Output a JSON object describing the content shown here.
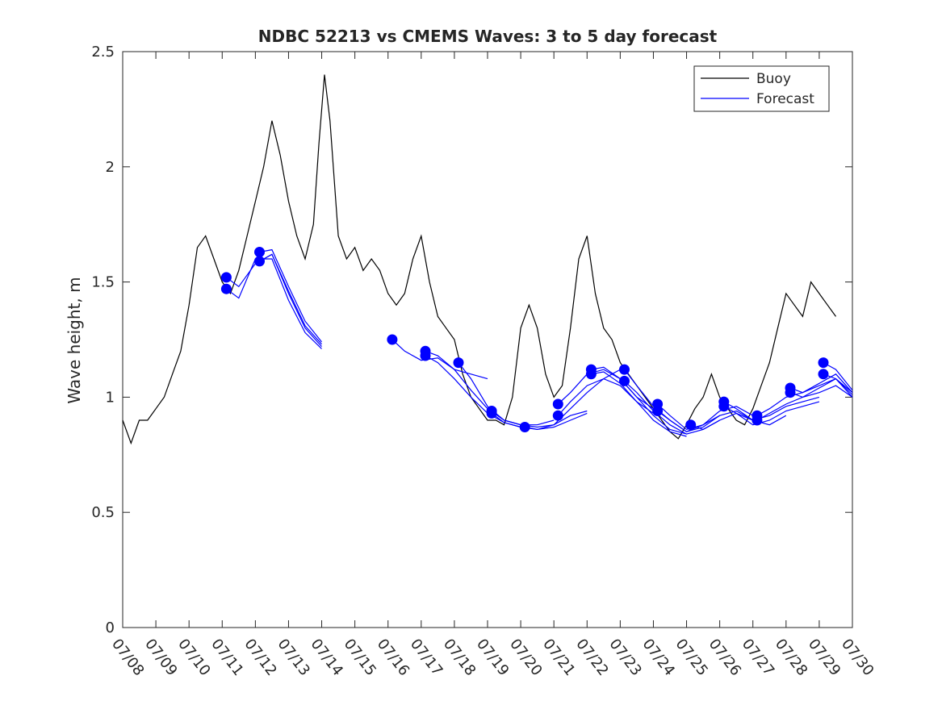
{
  "chart_data": {
    "type": "line",
    "title": "NDBC 52213 vs CMEMS Waves: 3 to 5 day forecast",
    "xlabel": "",
    "ylabel": "Wave height, m",
    "xlim": [
      "07/08",
      "07/30"
    ],
    "ylim": [
      0,
      2.5
    ],
    "grid": false,
    "legend_position": "top-right",
    "x_ticks": [
      "07/08",
      "07/09",
      "07/10",
      "07/11",
      "07/12",
      "07/13",
      "07/14",
      "07/15",
      "07/16",
      "07/17",
      "07/18",
      "07/19",
      "07/20",
      "07/21",
      "07/22",
      "07/23",
      "07/24",
      "07/25",
      "07/26",
      "07/27",
      "07/28",
      "07/29",
      "07/30"
    ],
    "y_ticks": [
      "0",
      "0.5",
      "1",
      "1.5",
      "2",
      "2.5"
    ],
    "colors": {
      "buoy": "#000000",
      "forecast": "#0000ff"
    },
    "series": [
      {
        "name": "Buoy",
        "style": "line",
        "x": [
          "07/08 00:00",
          "07/08 06:00",
          "07/08 12:00",
          "07/08 18:00",
          "07/09 00:00",
          "07/09 06:00",
          "07/09 12:00",
          "07/09 18:00",
          "07/10 00:00",
          "07/10 06:00",
          "07/10 12:00",
          "07/10 18:00",
          "07/11 00:00",
          "07/11 06:00",
          "07/11 12:00",
          "07/11 18:00",
          "07/12 00:00",
          "07/12 06:00",
          "07/12 12:00",
          "07/12 18:00",
          "07/13 00:00",
          "07/13 06:00",
          "07/13 12:00",
          "07/13 18:00",
          "07/13 22:00",
          "07/14 02:00",
          "07/14 06:00",
          "07/14 12:00",
          "07/14 18:00",
          "07/15 00:00",
          "07/15 06:00",
          "07/15 12:00",
          "07/15 18:00",
          "07/16 00:00",
          "07/16 06:00",
          "07/16 12:00",
          "07/16 18:00",
          "07/17 00:00",
          "07/17 06:00",
          "07/17 12:00",
          "07/17 18:00",
          "07/18 00:00",
          "07/18 06:00",
          "07/18 12:00",
          "07/18 18:00",
          "07/19 00:00",
          "07/19 06:00",
          "07/19 12:00",
          "07/19 18:00",
          "07/20 00:00",
          "07/20 06:00",
          "07/20 12:00",
          "07/20 18:00",
          "07/21 00:00",
          "07/21 06:00",
          "07/21 12:00",
          "07/21 18:00",
          "07/22 00:00",
          "07/22 06:00",
          "07/22 12:00",
          "07/22 18:00",
          "07/23 00:00",
          "07/23 06:00",
          "07/23 12:00",
          "07/23 18:00",
          "07/24 00:00",
          "07/24 06:00",
          "07/24 12:00",
          "07/24 18:00",
          "07/25 00:00",
          "07/25 06:00",
          "07/25 12:00",
          "07/25 18:00",
          "07/26 00:00",
          "07/26 06:00",
          "07/26 12:00",
          "07/26 18:00",
          "07/27 00:00",
          "07/27 06:00",
          "07/27 12:00",
          "07/27 18:00",
          "07/28 00:00",
          "07/28 06:00",
          "07/28 12:00",
          "07/28 18:00",
          "07/29 00:00",
          "07/29 06:00",
          "07/29 12:00"
        ],
        "y": [
          0.9,
          0.8,
          0.9,
          0.9,
          0.95,
          1.0,
          1.1,
          1.2,
          1.4,
          1.65,
          1.7,
          1.6,
          1.5,
          1.45,
          1.55,
          1.7,
          1.85,
          2.0,
          2.2,
          2.05,
          1.85,
          1.7,
          1.6,
          1.75,
          2.1,
          2.4,
          2.2,
          1.7,
          1.6,
          1.65,
          1.55,
          1.6,
          1.55,
          1.45,
          1.4,
          1.45,
          1.6,
          1.7,
          1.5,
          1.35,
          1.3,
          1.25,
          1.1,
          1.0,
          0.95,
          0.9,
          0.9,
          0.88,
          1.0,
          1.3,
          1.4,
          1.3,
          1.1,
          1.0,
          1.05,
          1.3,
          1.6,
          1.7,
          1.45,
          1.3,
          1.25,
          1.15,
          1.1,
          1.05,
          1.0,
          0.95,
          0.9,
          0.85,
          0.82,
          0.88,
          0.95,
          1.0,
          1.1,
          1.0,
          0.95,
          0.9,
          0.88,
          0.95,
          1.05,
          1.15,
          1.3,
          1.45,
          1.4,
          1.35,
          1.5,
          1.45,
          1.4,
          1.35
        ]
      },
      {
        "name": "Forecast",
        "style": "line-with-start-markers",
        "runs": [
          {
            "x": [
              "07/11 03:00",
              "07/11 12:00",
              "07/12 00:00",
              "07/12 12:00",
              "07/13 00:00",
              "07/13 12:00",
              "07/14 00:00"
            ],
            "y": [
              1.52,
              1.48,
              1.58,
              1.62,
              1.45,
              1.3,
              1.22
            ]
          },
          {
            "x": [
              "07/11 03:00",
              "07/11 12:00",
              "07/12 00:00",
              "07/12 12:00",
              "07/13 00:00",
              "07/13 12:00",
              "07/14 00:00"
            ],
            "y": [
              1.47,
              1.43,
              1.6,
              1.6,
              1.42,
              1.28,
              1.21
            ]
          },
          {
            "x": [
              "07/12 03:00",
              "07/12 12:00",
              "07/13 00:00",
              "07/13 12:00",
              "07/14 00:00"
            ],
            "y": [
              1.63,
              1.64,
              1.48,
              1.33,
              1.24
            ]
          },
          {
            "x": [
              "07/12 03:00",
              "07/12 12:00",
              "07/13 00:00",
              "07/13 12:00",
              "07/14 00:00"
            ],
            "y": [
              1.59,
              1.62,
              1.46,
              1.31,
              1.23
            ]
          },
          {
            "x": [
              "07/16 03:00",
              "07/16 12:00",
              "07/17 00:00",
              "07/17 12:00",
              "07/18 00:00",
              "07/18 12:00",
              "07/19 00:00"
            ],
            "y": [
              1.25,
              1.2,
              1.16,
              1.17,
              1.12,
              1.1,
              1.08
            ]
          },
          {
            "x": [
              "07/17 03:00",
              "07/17 12:00",
              "07/18 00:00",
              "07/18 12:00",
              "07/19 00:00",
              "07/19 12:00",
              "07/20 00:00"
            ],
            "y": [
              1.2,
              1.18,
              1.12,
              1.03,
              0.95,
              0.9,
              0.88
            ]
          },
          {
            "x": [
              "07/17 03:00",
              "07/17 12:00",
              "07/18 00:00",
              "07/18 12:00",
              "07/19 00:00",
              "07/19 12:00",
              "07/20 00:00"
            ],
            "y": [
              1.18,
              1.15,
              1.08,
              1.0,
              0.93,
              0.89,
              0.87
            ]
          },
          {
            "x": [
              "07/18 03:00",
              "07/18 12:00",
              "07/19 00:00",
              "07/19 12:00",
              "07/20 00:00",
              "07/20 12:00",
              "07/21 00:00"
            ],
            "y": [
              1.15,
              1.08,
              0.96,
              0.9,
              0.88,
              0.88,
              0.9
            ]
          },
          {
            "x": [
              "07/19 03:00",
              "07/19 12:00",
              "07/20 00:00",
              "07/20 12:00",
              "07/21 00:00",
              "07/21 12:00",
              "07/22 00:00"
            ],
            "y": [
              0.94,
              0.9,
              0.88,
              0.87,
              0.88,
              0.92,
              0.94
            ]
          },
          {
            "x": [
              "07/19 03:00",
              "07/19 12:00",
              "07/20 00:00",
              "07/20 12:00",
              "07/21 00:00",
              "07/21 12:00",
              "07/22 00:00"
            ],
            "y": [
              0.93,
              0.89,
              0.87,
              0.86,
              0.87,
              0.9,
              0.93
            ]
          },
          {
            "x": [
              "07/20 03:00",
              "07/20 12:00",
              "07/21 00:00",
              "07/21 12:00",
              "07/22 00:00",
              "07/22 12:00",
              "07/23 00:00"
            ],
            "y": [
              0.87,
              0.86,
              0.88,
              0.95,
              1.02,
              1.08,
              1.12
            ]
          },
          {
            "x": [
              "07/21 03:00",
              "07/21 12:00",
              "07/22 00:00",
              "07/22 12:00",
              "07/23 00:00",
              "07/23 12:00",
              "07/24 00:00"
            ],
            "y": [
              0.97,
              1.02,
              1.1,
              1.12,
              1.08,
              1.0,
              0.95
            ]
          },
          {
            "x": [
              "07/21 03:00",
              "07/21 12:00",
              "07/22 00:00",
              "07/22 12:00",
              "07/23 00:00",
              "07/23 12:00",
              "07/24 00:00"
            ],
            "y": [
              0.92,
              0.98,
              1.05,
              1.08,
              1.05,
              0.98,
              0.93
            ]
          },
          {
            "x": [
              "07/22 03:00",
              "07/22 12:00",
              "07/23 00:00",
              "07/23 12:00",
              "07/24 00:00",
              "07/24 12:00",
              "07/25 00:00"
            ],
            "y": [
              1.12,
              1.13,
              1.08,
              1.0,
              0.92,
              0.86,
              0.84
            ]
          },
          {
            "x": [
              "07/22 03:00",
              "07/22 12:00",
              "07/23 00:00",
              "07/23 12:00",
              "07/24 00:00",
              "07/24 12:00",
              "07/25 00:00"
            ],
            "y": [
              1.1,
              1.11,
              1.06,
              0.98,
              0.9,
              0.85,
              0.83
            ]
          },
          {
            "x": [
              "07/23 03:00",
              "07/23 12:00",
              "07/24 00:00",
              "07/24 12:00",
              "07/25 00:00",
              "07/25 12:00",
              "07/26 00:00"
            ],
            "y": [
              1.12,
              1.05,
              0.96,
              0.9,
              0.85,
              0.88,
              0.92
            ]
          },
          {
            "x": [
              "07/23 03:00",
              "07/23 12:00",
              "07/24 00:00",
              "07/24 12:00",
              "07/25 00:00",
              "07/25 12:00",
              "07/26 00:00"
            ],
            "y": [
              1.07,
              1.02,
              0.94,
              0.88,
              0.84,
              0.86,
              0.9
            ]
          },
          {
            "x": [
              "07/24 03:00",
              "07/24 12:00",
              "07/25 00:00",
              "07/25 12:00",
              "07/26 00:00",
              "07/26 12:00",
              "07/27 00:00"
            ],
            "y": [
              0.97,
              0.92,
              0.86,
              0.88,
              0.94,
              0.96,
              0.92
            ]
          },
          {
            "x": [
              "07/24 03:00",
              "07/24 12:00",
              "07/25 00:00",
              "07/25 12:00",
              "07/26 00:00",
              "07/26 12:00",
              "07/27 00:00"
            ],
            "y": [
              0.94,
              0.9,
              0.85,
              0.87,
              0.92,
              0.94,
              0.9
            ]
          },
          {
            "x": [
              "07/25 03:00",
              "07/25 12:00",
              "07/26 00:00",
              "07/26 12:00",
              "07/27 00:00",
              "07/27 12:00",
              "07/28 00:00"
            ],
            "y": [
              0.88,
              0.86,
              0.9,
              0.93,
              0.9,
              0.88,
              0.92
            ]
          },
          {
            "x": [
              "07/26 03:00",
              "07/26 12:00",
              "07/27 00:00",
              "07/27 12:00",
              "07/28 00:00",
              "07/28 12:00",
              "07/29 00:00"
            ],
            "y": [
              0.98,
              0.95,
              0.9,
              0.92,
              0.96,
              0.98,
              1.0
            ]
          },
          {
            "x": [
              "07/26 03:00",
              "07/26 12:00",
              "07/27 00:00",
              "07/27 12:00",
              "07/28 00:00",
              "07/28 12:00",
              "07/29 00:00"
            ],
            "y": [
              0.96,
              0.93,
              0.88,
              0.9,
              0.94,
              0.96,
              0.98
            ]
          },
          {
            "x": [
              "07/27 03:00",
              "07/27 12:00",
              "07/28 00:00",
              "07/28 12:00",
              "07/29 00:00",
              "07/29 12:00",
              "07/30 00:00"
            ],
            "y": [
              0.92,
              0.95,
              1.0,
              1.02,
              1.05,
              1.08,
              1.02
            ]
          },
          {
            "x": [
              "07/27 03:00",
              "07/27 12:00",
              "07/28 00:00",
              "07/28 12:00",
              "07/29 00:00",
              "07/29 12:00",
              "07/30 00:00"
            ],
            "y": [
              0.9,
              0.93,
              0.97,
              1.0,
              1.02,
              1.05,
              1.0
            ]
          },
          {
            "x": [
              "07/28 03:00",
              "07/28 12:00",
              "07/29 00:00",
              "07/29 12:00",
              "07/30 00:00"
            ],
            "y": [
              1.04,
              1.02,
              1.06,
              1.1,
              1.02
            ]
          },
          {
            "x": [
              "07/28 03:00",
              "07/28 12:00",
              "07/29 00:00",
              "07/29 12:00",
              "07/30 00:00"
            ],
            "y": [
              1.02,
              1.0,
              1.04,
              1.08,
              1.01
            ]
          },
          {
            "x": [
              "07/29 03:00",
              "07/29 12:00",
              "07/30 00:00"
            ],
            "y": [
              1.15,
              1.12,
              1.03
            ]
          },
          {
            "x": [
              "07/29 03:00",
              "07/29 12:00",
              "07/30 00:00"
            ],
            "y": [
              1.1,
              1.08,
              1.0
            ]
          }
        ]
      }
    ]
  }
}
